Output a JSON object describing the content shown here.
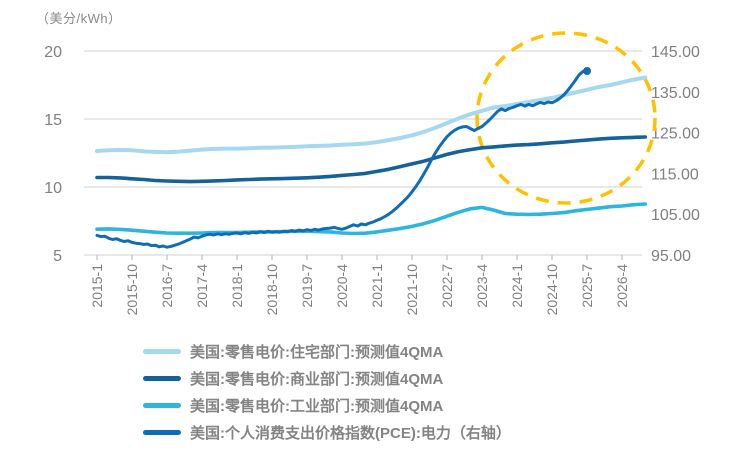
{
  "unit_label": "（美分/kWh）",
  "chart_data": {
    "type": "line",
    "title": "",
    "x_axis": {
      "start": "2015-1",
      "months_per_tick": 9,
      "tick_labels": [
        "2015-1",
        "2015-10",
        "2016-7",
        "2017-4",
        "2018-1",
        "2018-10",
        "2019-7",
        "2020-4",
        "2021-1",
        "2021-10",
        "2022-7",
        "2023-4",
        "2024-1",
        "2024-10",
        "2025-7",
        "2026-4"
      ]
    },
    "y_left": {
      "range": [
        5,
        20
      ],
      "ticks": [
        5,
        10,
        15,
        20
      ],
      "tick_labels": [
        "5",
        "10",
        "15",
        "20"
      ]
    },
    "y_right": {
      "range": [
        95,
        145
      ],
      "ticks": [
        95,
        105,
        115,
        125,
        135,
        145
      ],
      "tick_labels": [
        "95.00",
        "105.00",
        "115.00",
        "125.00",
        "135.00",
        "145.00"
      ]
    },
    "grid": "horizontal",
    "legend_position": "bottom-left",
    "annotation": {
      "type": "dashed-circle",
      "color": "#FFC000"
    },
    "series": [
      {
        "name": "美国:零售电价:住宅部门:预测值4QMA",
        "axis": "left",
        "color": "#A6D9F0",
        "width": 4,
        "start_month_index": 0,
        "month_step": 3,
        "values": [
          12.65,
          12.7,
          12.72,
          12.7,
          12.62,
          12.58,
          12.55,
          12.6,
          12.68,
          12.75,
          12.8,
          12.82,
          12.82,
          12.85,
          12.88,
          12.9,
          12.92,
          12.95,
          13.0,
          13.02,
          13.05,
          13.1,
          13.15,
          13.2,
          13.3,
          13.45,
          13.6,
          13.8,
          14.05,
          14.35,
          14.7,
          15.05,
          15.35,
          15.6,
          15.85,
          15.95,
          16.1,
          16.25,
          16.4,
          16.55,
          16.75,
          16.95,
          17.15,
          17.35,
          17.5,
          17.7,
          17.9,
          18.05
        ]
      },
      {
        "name": "美国:零售电价:商业部门:预测值4QMA",
        "axis": "left",
        "color": "#15629B",
        "width": 3.6,
        "start_month_index": 0,
        "month_step": 3,
        "values": [
          10.7,
          10.7,
          10.67,
          10.6,
          10.55,
          10.48,
          10.44,
          10.42,
          10.4,
          10.42,
          10.45,
          10.48,
          10.52,
          10.55,
          10.58,
          10.6,
          10.62,
          10.65,
          10.68,
          10.72,
          10.78,
          10.85,
          10.92,
          11.0,
          11.15,
          11.3,
          11.5,
          11.7,
          11.9,
          12.15,
          12.4,
          12.6,
          12.75,
          12.88,
          12.95,
          13.02,
          13.08,
          13.12,
          13.18,
          13.25,
          13.3,
          13.38,
          13.45,
          13.52,
          13.58,
          13.62,
          13.65,
          13.68
        ]
      },
      {
        "name": "美国:零售电价:工业部门:预测值4QMA",
        "axis": "left",
        "color": "#2CB6DD",
        "width": 3.6,
        "start_month_index": 0,
        "month_step": 3,
        "values": [
          6.9,
          6.92,
          6.88,
          6.82,
          6.75,
          6.68,
          6.62,
          6.6,
          6.6,
          6.62,
          6.65,
          6.65,
          6.65,
          6.68,
          6.7,
          6.7,
          6.72,
          6.75,
          6.75,
          6.72,
          6.7,
          6.62,
          6.58,
          6.6,
          6.7,
          6.82,
          6.95,
          7.1,
          7.3,
          7.55,
          7.85,
          8.15,
          8.4,
          8.5,
          8.3,
          8.05,
          8.0,
          7.98,
          8.0,
          8.05,
          8.12,
          8.25,
          8.35,
          8.45,
          8.55,
          8.6,
          8.7,
          8.75
        ]
      },
      {
        "name": "美国:个人消费支出价格指数(PCE):电力（右轴）",
        "axis": "right",
        "color": "#0F6DB8",
        "width": 3,
        "start_month_index": 0,
        "month_step": 1,
        "end_marker": true,
        "values": [
          99.8,
          99.5,
          99.6,
          99.1,
          98.8,
          99.0,
          98.6,
          98.3,
          98.5,
          98.1,
          97.9,
          97.8,
          97.6,
          97.7,
          97.3,
          97.4,
          97.0,
          97.2,
          96.9,
          97.1,
          97.4,
          97.7,
          98.1,
          98.5,
          98.9,
          99.4,
          99.2,
          99.6,
          99.9,
          100.1,
          99.9,
          100.2,
          100.0,
          100.2,
          100.1,
          100.3,
          100.4,
          100.2,
          100.5,
          100.3,
          100.6,
          100.4,
          100.7,
          100.5,
          100.8,
          100.6,
          100.7,
          100.6,
          100.8,
          100.7,
          101.0,
          100.8,
          101.1,
          100.9,
          101.2,
          101.0,
          101.3,
          101.1,
          101.4,
          101.5,
          101.6,
          101.8,
          101.5,
          101.3,
          101.6,
          102.0,
          102.4,
          102.1,
          102.6,
          102.4,
          102.8,
          103.1,
          103.5,
          103.9,
          104.4,
          105.0,
          105.7,
          106.5,
          107.4,
          108.3,
          109.3,
          110.5,
          111.8,
          113.2,
          114.8,
          116.5,
          118.3,
          120.0,
          121.5,
          122.8,
          124.0,
          124.9,
          125.6,
          126.1,
          126.4,
          126.5,
          126.0,
          125.5,
          126.0,
          126.5,
          127.3,
          128.2,
          129.2,
          130.2,
          130.8,
          130.4,
          130.9,
          131.2,
          131.6,
          131.9,
          131.5,
          131.9,
          131.6,
          132.0,
          132.4,
          132.1,
          132.5,
          132.3,
          132.8,
          133.4,
          134.2,
          135.3,
          136.5,
          137.8,
          139.2,
          140.0,
          140.1
        ]
      }
    ]
  },
  "legend": {
    "items": [
      "美国:零售电价:住宅部门:预测值4QMA",
      "美国:零售电价:商业部门:预测值4QMA",
      "美国:零售电价:工业部门:预测值4QMA",
      "美国:个人消费支出价格指数(PCE):电力（右轴）"
    ]
  }
}
